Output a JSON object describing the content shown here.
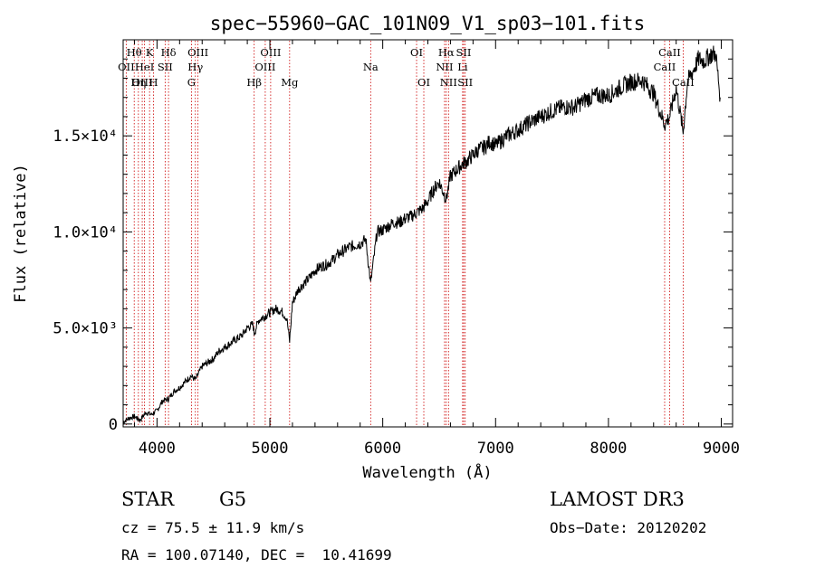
{
  "chart_data": {
    "type": "line",
    "title": "spec−55960−GAC_101N09_V1_sp03−101.fits",
    "xlabel": "Wavelength (Å)",
    "ylabel": "Flux (relative)",
    "xlim": [
      3700,
      9100
    ],
    "ylim": [
      -150,
      20000
    ],
    "x_ticks": [
      {
        "value": 4000,
        "label": "4000"
      },
      {
        "value": 5000,
        "label": "5000"
      },
      {
        "value": 6000,
        "label": "6000"
      },
      {
        "value": 7000,
        "label": "7000"
      },
      {
        "value": 8000,
        "label": "8000"
      },
      {
        "value": 9000,
        "label": "9000"
      }
    ],
    "y_ticks": [
      {
        "value": 0,
        "label": "0"
      },
      {
        "value": 5000,
        "label": "5.0×10³"
      },
      {
        "value": 10000,
        "label": "1.0×10⁴"
      },
      {
        "value": 15000,
        "label": "1.5×10⁴"
      }
    ],
    "spectrum": {
      "name": "flux",
      "x": [
        3700,
        3750,
        3800,
        3850,
        3900,
        3950,
        4000,
        4050,
        4100,
        4150,
        4200,
        4250,
        4300,
        4340,
        4400,
        4450,
        4500,
        4550,
        4600,
        4650,
        4700,
        4750,
        4800,
        4850,
        4861,
        4900,
        4950,
        5000,
        5050,
        5100,
        5150,
        5175,
        5200,
        5250,
        5300,
        5350,
        5400,
        5450,
        5500,
        5550,
        5600,
        5650,
        5700,
        5750,
        5800,
        5850,
        5893,
        5950,
        6000,
        6050,
        6100,
        6150,
        6200,
        6250,
        6300,
        6350,
        6400,
        6450,
        6500,
        6563,
        6600,
        6650,
        6700,
        6750,
        6800,
        6850,
        6900,
        6950,
        7000,
        7100,
        7200,
        7300,
        7400,
        7500,
        7600,
        7700,
        7800,
        7900,
        8000,
        8100,
        8200,
        8300,
        8400,
        8498,
        8542,
        8600,
        8662,
        8700,
        8750,
        8800,
        8850,
        8900,
        8950,
        8990
      ],
      "y": [
        100,
        300,
        400,
        200,
        600,
        500,
        700,
        1200,
        1300,
        1700,
        1900,
        2200,
        2500,
        2300,
        3000,
        3200,
        3400,
        3800,
        4000,
        4200,
        4400,
        4600,
        5000,
        5200,
        4700,
        5400,
        5600,
        5800,
        6000,
        5900,
        5500,
        4300,
        6300,
        7000,
        7300,
        7600,
        8000,
        8200,
        8300,
        8500,
        8800,
        9000,
        9200,
        9300,
        9400,
        9600,
        7300,
        10000,
        10100,
        10300,
        10500,
        10500,
        10700,
        10800,
        11000,
        11200,
        11600,
        12200,
        12600,
        11700,
        12900,
        13200,
        13500,
        13700,
        14000,
        14300,
        14400,
        14700,
        14500,
        15000,
        15300,
        15700,
        16000,
        16300,
        16500,
        16500,
        16900,
        17100,
        17100,
        17500,
        17800,
        17900,
        17200,
        15600,
        16000,
        17500,
        15200,
        17800,
        18400,
        19000,
        18900,
        19200,
        19300,
        17000
      ]
    },
    "line_markers": [
      {
        "name": "Hθ",
        "wave": 3798,
        "row": 1
      },
      {
        "name": "OII",
        "wave": 3727,
        "row": 2
      },
      {
        "name": "OIII",
        "wave": 3869,
        "row": 3
      },
      {
        "name": "K",
        "wave": 3934,
        "row": 1
      },
      {
        "name": "HeI",
        "wave": 3889,
        "row": 2
      },
      {
        "name": "Hη",
        "wave": 3835,
        "row": 3
      },
      {
        "name": "Hδ",
        "wave": 4102,
        "row": 1
      },
      {
        "name": "SII",
        "wave": 4072,
        "row": 2
      },
      {
        "name": "H",
        "wave": 3969,
        "row": 3
      },
      {
        "name": "OIII",
        "wave": 4363,
        "row": 1
      },
      {
        "name": "Hγ",
        "wave": 4340,
        "row": 2
      },
      {
        "name": "G",
        "wave": 4305,
        "row": 3
      },
      {
        "name": "Hβ",
        "wave": 4861,
        "row": 3
      },
      {
        "name": "OIII",
        "wave": 5007,
        "row": 1
      },
      {
        "name": "OIII",
        "wave": 4959,
        "row": 2
      },
      {
        "name": "Mg",
        "wave": 5175,
        "row": 3
      },
      {
        "name": "Na",
        "wave": 5893,
        "row": 2
      },
      {
        "name": "OI",
        "wave": 6300,
        "row": 1
      },
      {
        "name": "OI",
        "wave": 6364,
        "row": 3
      },
      {
        "name": "Hα",
        "wave": 6563,
        "row": 1
      },
      {
        "name": "NII",
        "wave": 6548,
        "row": 2
      },
      {
        "name": "NII",
        "wave": 6583,
        "row": 3
      },
      {
        "name": "SII",
        "wave": 6717,
        "row": 1
      },
      {
        "name": "Li",
        "wave": 6708,
        "row": 2
      },
      {
        "name": "SII",
        "wave": 6731,
        "row": 3
      },
      {
        "name": "CaII",
        "wave": 8542,
        "row": 1
      },
      {
        "name": "CaII",
        "wave": 8498,
        "row": 2
      },
      {
        "name": "CaII",
        "wave": 8662,
        "row": 3
      }
    ]
  },
  "info": {
    "object_class": "STAR",
    "subclass": "G5",
    "survey": "LAMOST DR3",
    "redshift": "cz = 75.5 ± 11.9 km/s",
    "obs_date": "Obs−Date: 20120202",
    "coords": "RA = 100.07140, DEC =  10.41699"
  },
  "colors": {
    "marker_line": "#cc0000",
    "spectrum": "#000000"
  }
}
